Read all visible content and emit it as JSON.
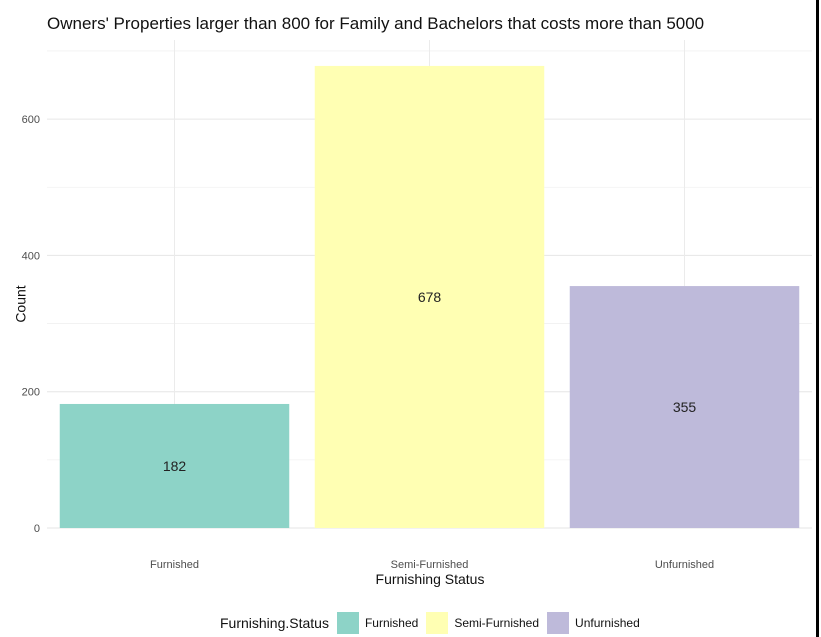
{
  "chart_data": {
    "type": "bar",
    "title": "Owners' Properties larger than 800 for Family and Bachelors that costs more than 5000",
    "xlabel": "Furnishing Status",
    "ylabel": "Count",
    "categories": [
      "Furnished",
      "Semi-Furnished",
      "Unfurnished"
    ],
    "values": [
      182,
      678,
      355
    ],
    "colors": [
      "#8dd3c7",
      "#ffffb3",
      "#bebada"
    ],
    "ylim": [
      0,
      700
    ],
    "yticks": [
      0,
      200,
      400,
      600
    ],
    "grid": true,
    "legend": {
      "title": "Furnishing.Status",
      "placement": "bottom",
      "entries": [
        "Furnished",
        "Semi-Furnished",
        "Unfurnished"
      ]
    }
  }
}
